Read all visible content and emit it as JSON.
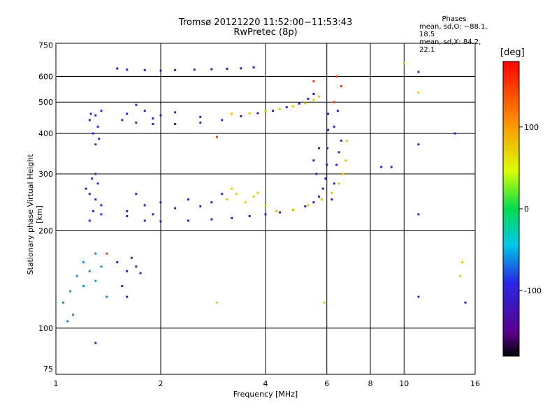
{
  "header": {
    "title_line1": "Tromsø 20121220 11:52:00−11:53:43",
    "title_line2": "RwPretec (8p)"
  },
  "stats": {
    "heading": "Phases",
    "line_o": "mean, sd,O: −88.1, 18.5",
    "line_x": "mean, sd,X:  84.2, 22.1"
  },
  "chart_data": {
    "type": "scatter",
    "xlabel": "Frequency [MHz]",
    "ylabel": "Stationary phase Virtual Height [km]",
    "x_scale": "log",
    "y_scale": "log",
    "xlim": [
      1,
      16
    ],
    "ylim": [
      72,
      760
    ],
    "x_ticks": [
      1,
      2,
      4,
      6,
      8,
      10,
      16
    ],
    "y_ticks": [
      75,
      100,
      200,
      300,
      400,
      500,
      600,
      750
    ],
    "x_grid": [
      2,
      4,
      6,
      8,
      10
    ],
    "y_grid": [
      100,
      200,
      300,
      400,
      500,
      600
    ],
    "colorbar": {
      "label": "[deg]",
      "range": [
        -180,
        180
      ],
      "ticks": [
        100,
        0,
        -100
      ]
    },
    "series": [
      {
        "phase": -110,
        "points": [
          [
            1.6,
            222
          ],
          [
            1.8,
            215
          ],
          [
            2.0,
            214
          ],
          [
            2.4,
            215
          ],
          [
            2.8,
            217
          ],
          [
            3.2,
            219
          ],
          [
            3.6,
            222
          ],
          [
            4.0,
            225
          ],
          [
            4.4,
            228
          ],
          [
            4.8,
            232
          ],
          [
            5.2,
            238
          ],
          [
            5.5,
            245
          ],
          [
            5.7,
            255
          ],
          [
            5.85,
            270
          ],
          [
            5.95,
            290
          ],
          [
            6.0,
            320
          ],
          [
            6.02,
            360
          ],
          [
            6.05,
            410
          ],
          [
            6.05,
            460
          ]
        ]
      },
      {
        "phase": -110,
        "points": [
          [
            1.55,
            440
          ],
          [
            1.7,
            432
          ],
          [
            1.9,
            428
          ],
          [
            2.2,
            428
          ],
          [
            2.6,
            432
          ],
          [
            3.0,
            440
          ],
          [
            3.4,
            452
          ],
          [
            3.8,
            462
          ],
          [
            4.2,
            470
          ],
          [
            4.6,
            482
          ],
          [
            5.0,
            495
          ],
          [
            5.3,
            512
          ],
          [
            5.5,
            530
          ]
        ]
      },
      {
        "phase": 80,
        "points": [
          [
            4.3,
            230
          ],
          [
            4.8,
            232
          ],
          [
            5.3,
            240
          ],
          [
            5.8,
            250
          ],
          [
            6.2,
            262
          ],
          [
            6.5,
            280
          ],
          [
            6.7,
            300
          ],
          [
            6.8,
            330
          ],
          [
            6.85,
            380
          ]
        ]
      },
      {
        "phase": 80,
        "points": [
          [
            3.2,
            460
          ],
          [
            3.6,
            462
          ],
          [
            4.0,
            468
          ],
          [
            4.4,
            476
          ],
          [
            4.8,
            485
          ],
          [
            5.2,
            496
          ],
          [
            5.5,
            508
          ],
          [
            5.7,
            520
          ]
        ]
      },
      {
        "phase": -110,
        "points": [
          [
            1.5,
            635
          ],
          [
            1.6,
            630
          ],
          [
            1.8,
            628
          ],
          [
            2.0,
            626
          ],
          [
            2.2,
            628
          ],
          [
            2.5,
            630
          ],
          [
            2.8,
            632
          ],
          [
            3.1,
            634
          ],
          [
            3.4,
            636
          ],
          [
            3.7,
            640
          ]
        ]
      },
      {
        "phase": -90,
        "points": [
          [
            1.25,
            260
          ],
          [
            1.3,
            250
          ],
          [
            1.35,
            240
          ],
          [
            1.28,
            230
          ],
          [
            1.22,
            270
          ],
          [
            1.32,
            280
          ],
          [
            1.27,
            290
          ],
          [
            1.3,
            300
          ],
          [
            1.25,
            215
          ],
          [
            1.35,
            225
          ]
        ]
      },
      {
        "phase": -90,
        "points": [
          [
            1.25,
            440
          ],
          [
            1.3,
            455
          ],
          [
            1.35,
            470
          ],
          [
            1.32,
            420
          ],
          [
            1.28,
            400
          ],
          [
            1.33,
            385
          ],
          [
            1.3,
            370
          ],
          [
            1.26,
            460
          ]
        ]
      },
      {
        "phase": -60,
        "points": [
          [
            1.05,
            120
          ],
          [
            1.1,
            130
          ],
          [
            1.15,
            145
          ],
          [
            1.2,
            160
          ],
          [
            1.25,
            150
          ],
          [
            1.3,
            140
          ],
          [
            1.35,
            155
          ],
          [
            1.4,
            125
          ],
          [
            1.12,
            110
          ],
          [
            1.08,
            105
          ],
          [
            1.3,
            170
          ],
          [
            1.2,
            135
          ]
        ]
      },
      {
        "phase": -120,
        "points": [
          [
            1.5,
            160
          ],
          [
            1.6,
            150
          ],
          [
            1.65,
            165
          ],
          [
            1.7,
            155
          ],
          [
            1.55,
            135
          ],
          [
            1.6,
            125
          ],
          [
            1.75,
            148
          ]
        ]
      },
      {
        "phase": -100,
        "points": [
          [
            1.6,
            230
          ],
          [
            1.8,
            240
          ],
          [
            2.0,
            245
          ],
          [
            2.2,
            235
          ],
          [
            2.4,
            250
          ],
          [
            2.6,
            238
          ],
          [
            2.8,
            245
          ],
          [
            3.0,
            260
          ],
          [
            1.7,
            260
          ],
          [
            1.9,
            225
          ]
        ]
      },
      {
        "phase": -100,
        "points": [
          [
            1.6,
            460
          ],
          [
            1.8,
            470
          ],
          [
            2.0,
            455
          ],
          [
            2.2,
            465
          ],
          [
            2.6,
            450
          ],
          [
            1.7,
            490
          ],
          [
            1.9,
            445
          ]
        ]
      },
      {
        "phase": 75,
        "points": [
          [
            3.1,
            250
          ],
          [
            3.3,
            260
          ],
          [
            3.5,
            245
          ],
          [
            3.7,
            255
          ],
          [
            4.0,
            240
          ],
          [
            3.2,
            270
          ],
          [
            3.8,
            262
          ]
        ]
      },
      {
        "phase": -110,
        "points": [
          [
            6.2,
            250
          ],
          [
            6.3,
            280
          ],
          [
            6.4,
            320
          ],
          [
            6.5,
            350
          ],
          [
            6.6,
            380
          ],
          [
            6.3,
            420
          ],
          [
            6.45,
            470
          ],
          [
            5.6,
            300
          ],
          [
            5.5,
            330
          ],
          [
            5.7,
            360
          ]
        ]
      },
      {
        "phase": 150,
        "points": [
          [
            6.4,
            600
          ],
          [
            6.6,
            560
          ],
          [
            5.5,
            580
          ],
          [
            2.9,
            390
          ],
          [
            1.4,
            170
          ],
          [
            6.3,
            500
          ]
        ]
      },
      {
        "phase": -100,
        "points": [
          [
            11,
            620
          ],
          [
            11,
            370
          ],
          [
            11,
            225
          ],
          [
            14,
            400
          ],
          [
            9.2,
            315
          ],
          [
            8.6,
            315
          ],
          [
            11,
            125
          ],
          [
            15,
            120
          ],
          [
            1.3,
            90
          ]
        ]
      },
      {
        "phase": 80,
        "points": [
          [
            14.5,
            145
          ],
          [
            11,
            535
          ],
          [
            10,
            660
          ],
          [
            14.7,
            160
          ],
          [
            2.9,
            120
          ],
          [
            5.9,
            120
          ]
        ]
      }
    ]
  }
}
